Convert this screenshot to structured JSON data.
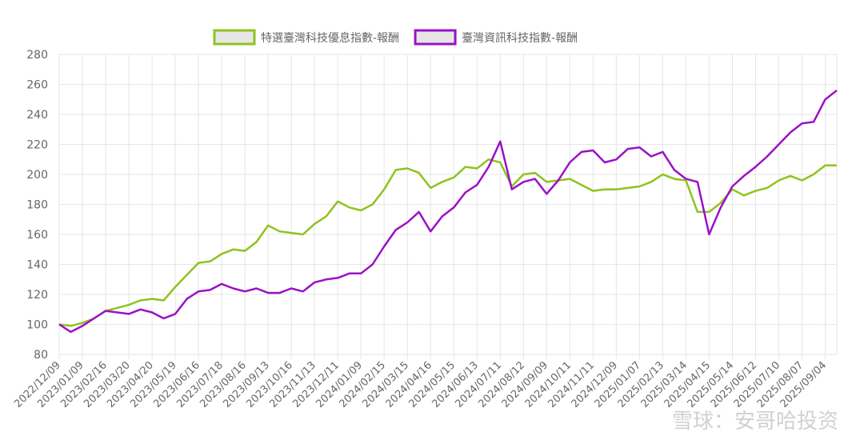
{
  "chart_data": {
    "type": "line",
    "categories": [
      "2022/12/09",
      null,
      "2023/01/09",
      null,
      "2023/02/16",
      null,
      "2023/03/20",
      null,
      "2023/04/20",
      null,
      "2023/05/19",
      null,
      "2023/06/16",
      null,
      "2023/07/18",
      null,
      "2023/08/16",
      null,
      "2023/09/13",
      null,
      "2023/10/16",
      null,
      "2023/11/13",
      null,
      "2023/12/11",
      null,
      "2024/01/09",
      null,
      "2024/02/15",
      null,
      "2024/03/15",
      null,
      "2024/04/16",
      null,
      "2024/05/15",
      null,
      "2024/06/13",
      null,
      "2024/07/11",
      null,
      "2024/08/12",
      null,
      "2024/09/09",
      null,
      "2024/10/11",
      null,
      "2024/11/11",
      null,
      "2024/12/09",
      null,
      "2025/01/07",
      null,
      "2025/02/13",
      null,
      "2025/03/14",
      null,
      "2025/04/15",
      null,
      "2025/05/14",
      null,
      "2025/06/12",
      null,
      "2025/07/10",
      null,
      "2025/08/07",
      null,
      "2025/09/04",
      null
    ],
    "series": [
      {
        "name": "特選臺灣科技優息指數-報酬",
        "color": "#8fc31f",
        "values": [
          100,
          99,
          101,
          104,
          109,
          111,
          113,
          116,
          117,
          116,
          125,
          133,
          141,
          142,
          147,
          150,
          149,
          155,
          166,
          162,
          161,
          160,
          167,
          172,
          182,
          178,
          176,
          180,
          190,
          203,
          204,
          201,
          191,
          195,
          198,
          205,
          204,
          210,
          208,
          192,
          200,
          201,
          195,
          196,
          197,
          193,
          189,
          190,
          190,
          191,
          192,
          195,
          200,
          197,
          196,
          175,
          175,
          181,
          190,
          186,
          189,
          191,
          196,
          199,
          196,
          200,
          206,
          206
        ]
      },
      {
        "name": "臺灣資訊科技指數-報酬",
        "color": "#9b11c7",
        "values": [
          100,
          95,
          99,
          104,
          109,
          108,
          107,
          110,
          108,
          104,
          107,
          117,
          122,
          123,
          127,
          124,
          122,
          124,
          121,
          121,
          124,
          122,
          128,
          130,
          131,
          134,
          134,
          140,
          152,
          163,
          168,
          175,
          162,
          172,
          178,
          188,
          193,
          205,
          222,
          190,
          195,
          197,
          187,
          196,
          208,
          215,
          216,
          208,
          210,
          217,
          218,
          212,
          215,
          203,
          197,
          195,
          160,
          178,
          192,
          199,
          205,
          212,
          220,
          228,
          234,
          235,
          250,
          256
        ]
      }
    ],
    "ylim": [
      80,
      280
    ],
    "yticks": [
      80,
      100,
      120,
      140,
      160,
      180,
      200,
      220,
      240,
      260,
      280
    ],
    "grid": true,
    "legend": "top",
    "watermark": "雪球：安哥哈投资"
  }
}
